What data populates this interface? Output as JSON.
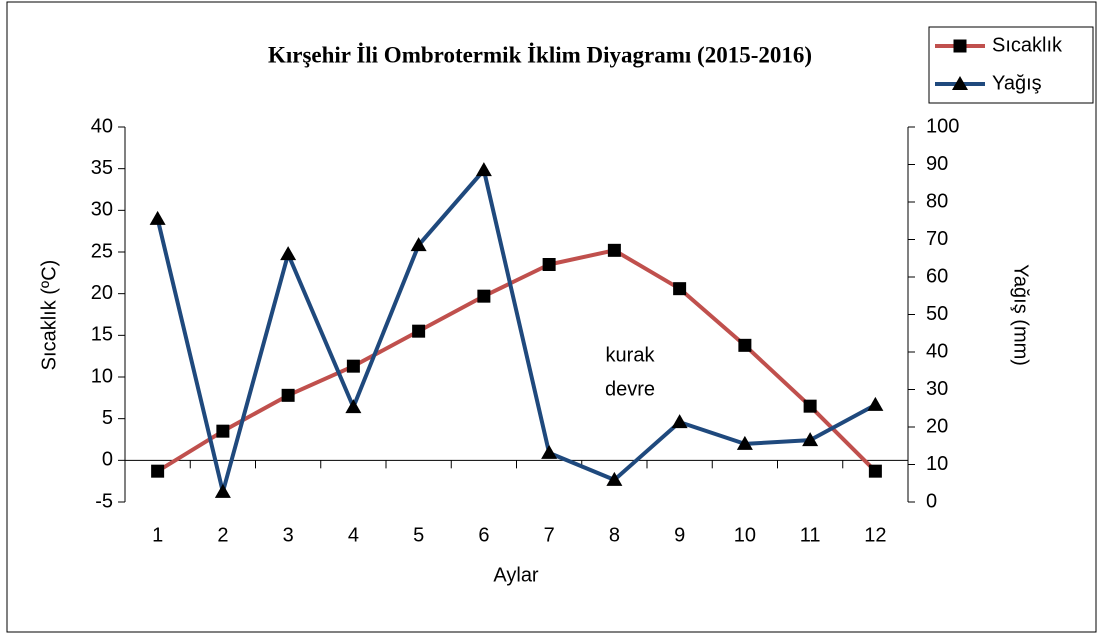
{
  "chart_data": {
    "type": "line",
    "title": "Kırşehir İli Ombrotermik İklim Diyagramı (2015-2016)",
    "x_label": "Aylar",
    "y_label": "Sıcaklık (ºC)",
    "y2_label": "Yağış (mm)",
    "categories": [
      "1",
      "2",
      "3",
      "4",
      "5",
      "6",
      "7",
      "8",
      "9",
      "10",
      "11",
      "12"
    ],
    "series": [
      {
        "name": "Sıcaklık",
        "color": "#c0504d",
        "marker": "square",
        "values": [
          -1.3,
          3.5,
          7.8,
          11.3,
          15.5,
          19.7,
          23.5,
          25.2,
          20.6,
          13.8,
          6.5,
          -1.3
        ]
      },
      {
        "name": "Yağış",
        "color": "#1f497d",
        "marker": "triangle",
        "axis": "y2",
        "values": [
          75.5,
          2.7,
          66.1,
          25.3,
          68.5,
          88.5,
          13.1,
          5.9,
          21.3,
          15.5,
          16.5,
          25.9
        ]
      }
    ],
    "ylim": [
      -5,
      40
    ],
    "yticks": [
      -5,
      0,
      5,
      10,
      15,
      20,
      25,
      30,
      35,
      40
    ],
    "y2lim": [
      0,
      100
    ],
    "y2ticks": [
      0,
      10,
      20,
      30,
      40,
      50,
      60,
      70,
      80,
      90,
      100
    ],
    "annotation": [
      "kurak",
      "devre"
    ],
    "legend": "top-right",
    "grid": false
  }
}
